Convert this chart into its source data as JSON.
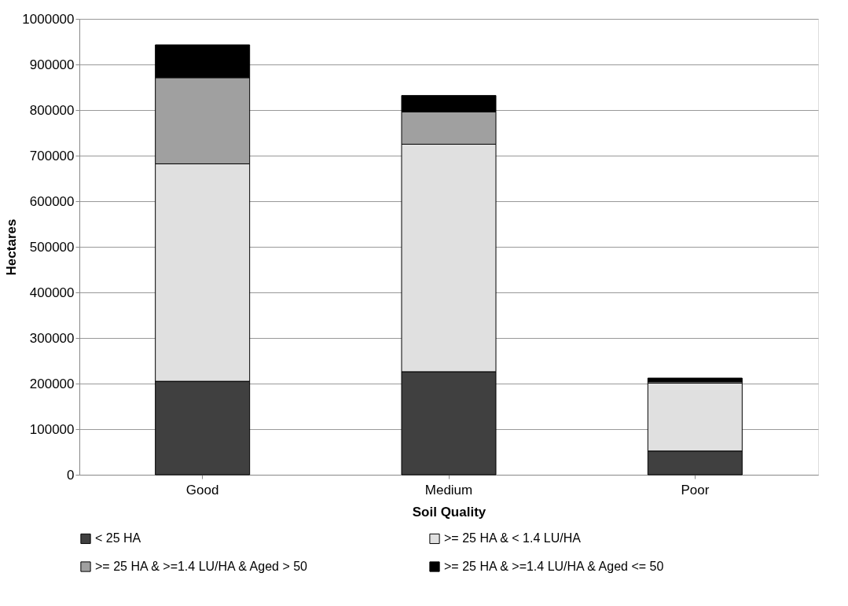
{
  "chart_data": {
    "type": "bar",
    "stacked": true,
    "xlabel": "Soil Quality",
    "ylabel": "Hectares",
    "categories": [
      "Good",
      "Medium",
      "Poor"
    ],
    "series": [
      {
        "name": "< 25 HA",
        "color": "#404040",
        "values": [
          205000,
          226000,
          52000
        ]
      },
      {
        "name": ">= 25 HA & < 1.4 LU/HA",
        "color": "#e0e0e0",
        "values": [
          477000,
          499000,
          149000
        ]
      },
      {
        "name": ">= 25 HA & >=1.4 LU/HA & Aged > 50",
        "color": "#a0a0a0",
        "values": [
          189000,
          71000,
          3000
        ]
      },
      {
        "name": ">= 25 HA & >=1.4 LU/HA & Aged <= 50",
        "color": "#000000",
        "values": [
          72000,
          36000,
          8000
        ]
      }
    ],
    "ylim": [
      0,
      1000000
    ],
    "yticks": [
      0,
      100000,
      200000,
      300000,
      400000,
      500000,
      600000,
      700000,
      800000,
      900000,
      1000000
    ],
    "grid": "y",
    "legend": "bottom"
  }
}
